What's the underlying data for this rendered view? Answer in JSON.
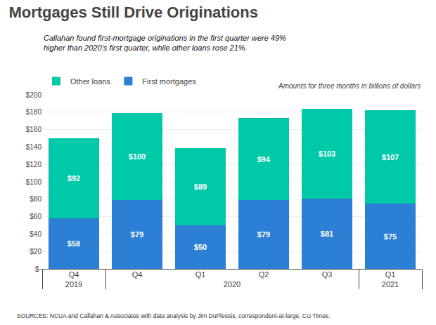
{
  "chart_data": {
    "type": "bar",
    "title": "Mortgages Still Drive Originations",
    "subtitle": "Callahan found first-mortgage originations in the first quarter were 49%\nhigher than 2020’s first quarter, while other loans rose 21%.",
    "annotation": "Amounts for three months in billions of dollars",
    "source": "SOURCES: NCUA and Callahan & Associates with data analysis by Jim DuPlessis, correspondent-at-large, CU Times.",
    "categories": [
      "Q4",
      "Q1",
      "Q2",
      "Q3",
      "Q4",
      "Q1"
    ],
    "category_groups": [
      "2019",
      "2020",
      "2020",
      "2020",
      "2020",
      "2021"
    ],
    "series": [
      {
        "name": "First mortgages",
        "color": "#2b7fd4",
        "values": [
          58,
          50,
          79,
          81,
          79,
          75
        ],
        "value_labels": [
          "$58",
          "$50",
          "$79",
          "$81",
          "$79",
          "$75"
        ]
      },
      {
        "name": "Other loans",
        "color": "#00c9a7",
        "values": [
          92,
          89,
          94,
          103,
          100,
          107
        ],
        "value_labels": [
          "$92",
          "$89",
          "$94",
          "$103",
          "$100",
          "$107"
        ]
      }
    ],
    "stacked": true,
    "data_labels": true,
    "ylim": [
      0,
      200
    ],
    "yticks": [
      {
        "value": 0,
        "label": "$-"
      },
      {
        "value": 20,
        "label": "$20"
      },
      {
        "value": 40,
        "label": "$40"
      },
      {
        "value": 60,
        "label": "$60"
      },
      {
        "value": 80,
        "label": "$80"
      },
      {
        "value": 100,
        "label": "$100"
      },
      {
        "value": 120,
        "label": "$120"
      },
      {
        "value": 140,
        "label": "$140"
      },
      {
        "value": 160,
        "label": "$160"
      },
      {
        "value": 180,
        "label": "$180"
      },
      {
        "value": 200,
        "label": "$200"
      }
    ],
    "grid": true,
    "legend": "upper left"
  }
}
